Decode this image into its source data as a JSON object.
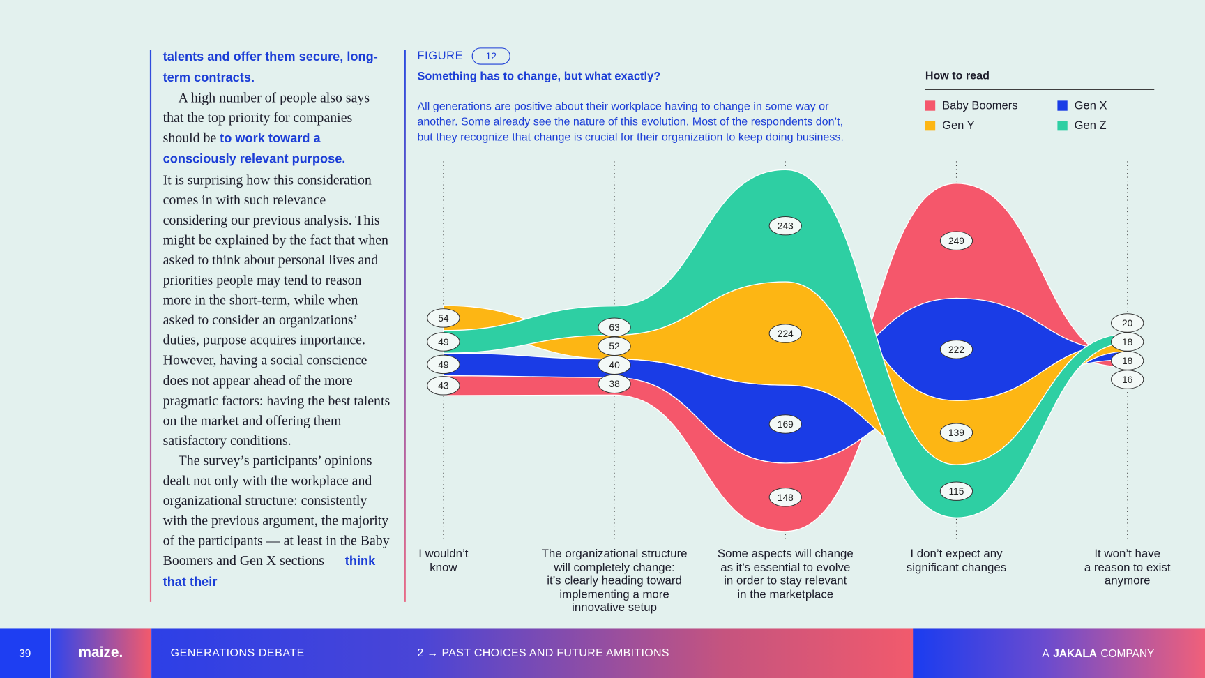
{
  "page": {
    "number": "39",
    "brand": "maize.",
    "section": "GENERATIONS DEBATE",
    "chapter": "2 → PAST CHOICES AND FUTURE AMBITIONS",
    "company": [
      "A",
      "JAKALA",
      "COMPANY"
    ]
  },
  "article": {
    "paragraphs": [
      {
        "indent": false,
        "segments": [
          {
            "text": "talents and offer them secure, long-term contracts.",
            "highlight": true
          }
        ]
      },
      {
        "indent": true,
        "segments": [
          {
            "text": "A high number of people also says that the top priority for companies should be ",
            "highlight": false
          },
          {
            "text": "to work toward a consciously relevant purpose.",
            "highlight": true
          }
        ]
      },
      {
        "indent": false,
        "segments": [
          {
            "text": "It is surprising how this consideration comes in with such relevance considering our previous analysis. This might be explained by the fact that when asked to think about personal lives and priorities people may tend to reason more in the short-term, while when asked to consider an organizations’ duties, purpose acquires importance. However, having a social conscience does not appear ahead of the more pragmatic factors: having the best talents on the market and offering them satisfactory conditions.",
            "highlight": false
          }
        ]
      },
      {
        "indent": true,
        "segments": [
          {
            "text": "The survey’s participants’ opinions dealt not only with the workplace and organizational structure: consistently with the previous argument, the majority of the participants — at least in the Baby Boomers and Gen X sections — ",
            "highlight": false
          },
          {
            "text": "think that their",
            "highlight": true
          }
        ]
      }
    ]
  },
  "figure": {
    "label": "FIGURE",
    "number": "12"
  },
  "chart_data": {
    "type": "stream",
    "title": "Something has to change, but what exactly?",
    "subtitle": "All generations are positive about their workplace having to change in some way or\nanother. Some already see the nature of this evolution. Most of the respondents don’t,\nbut they recognize that change is crucial for their organization to keep doing business.",
    "legend_title": "How to read",
    "categories": [
      "I wouldn’t\nknow",
      "The organizational structure\nwill completely change:\nit’s clearly heading toward\nimplementing a more\ninnovative setup",
      "Some aspects will change\nas it’s essential to evolve\nin order to stay relevant\nin the marketplace",
      "I don’t expect any\nsignificant changes",
      "It won’t have\na reason to exist\nanymore"
    ],
    "series": [
      {
        "name": "Baby Boomers",
        "color": "#f5576b",
        "values": [
          43,
          38,
          148,
          249,
          16
        ]
      },
      {
        "name": "Gen X",
        "color": "#1a3ce6",
        "values": [
          49,
          40,
          169,
          222,
          18
        ]
      },
      {
        "name": "Gen Y",
        "color": "#fdb614",
        "values": [
          54,
          52,
          224,
          139,
          18
        ]
      },
      {
        "name": "Gen Z",
        "color": "#2ecfa3",
        "values": [
          49,
          63,
          243,
          115,
          20
        ]
      }
    ]
  }
}
